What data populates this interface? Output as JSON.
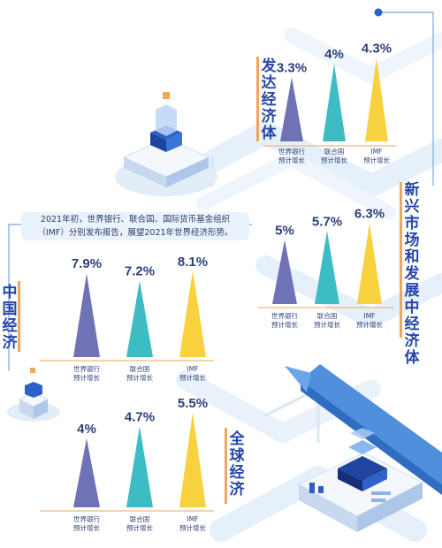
{
  "note": {
    "line1": "2021年初，世界银行、联合国、国际货币基金组织",
    "line2": "（IMF）分别发布报告，展望2021年世界经济形势。"
  },
  "colors": {
    "world_bank": "#6f72b5",
    "un": "#3dbdc3",
    "imf": "#f7d23e",
    "title": "#2746a8",
    "title_bar": "#f2a65a",
    "background_path": "#e4eff9",
    "arrow": "#5e9be0"
  },
  "chart_data": [
    {
      "type": "bar",
      "title": "发达经济体",
      "categories": [
        "世界银行\n预计增长",
        "联合国\n预计增长",
        "IMF\n预计增长"
      ],
      "values": [
        3.3,
        4,
        4.3
      ],
      "value_labels": [
        "3.3%",
        "4%",
        "4.3%"
      ],
      "unit": "%"
    },
    {
      "type": "bar",
      "title": "新兴市场和发展中经济体",
      "categories": [
        "世界银行\n预计增长",
        "联合国\n预计增长",
        "IMF\n预计增长"
      ],
      "values": [
        5,
        5.7,
        6.3
      ],
      "value_labels": [
        "5%",
        "5.7%",
        "6.3%"
      ],
      "unit": "%"
    },
    {
      "type": "bar",
      "title": "中国经济",
      "categories": [
        "世界银行\n预计增长",
        "联合国\n预计增长",
        "IMF\n预计增长"
      ],
      "values": [
        7.9,
        7.2,
        8.1
      ],
      "value_labels": [
        "7.9%",
        "7.2%",
        "8.1%"
      ],
      "unit": "%"
    },
    {
      "type": "bar",
      "title": "全球经济",
      "categories": [
        "世界银行\n预计增长",
        "联合国\n预计增长",
        "IMF\n预计增长"
      ],
      "values": [
        4,
        4.7,
        5.5
      ],
      "value_labels": [
        "4%",
        "4.7%",
        "5.5%"
      ],
      "unit": "%"
    }
  ]
}
